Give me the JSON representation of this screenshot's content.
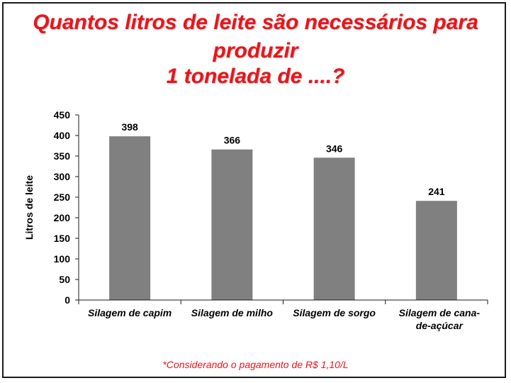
{
  "title": {
    "line1": "Quantos litros de leite são necessários para",
    "line2": "produzir",
    "line3": "1 tonelada de ....?"
  },
  "footnote": "*Considerando o pagamento de R$ 1,10/L",
  "colors": {
    "title": "#e8151b",
    "bar": "#808080",
    "axis": "#1a1a1a"
  },
  "chart_data": {
    "type": "bar",
    "categories": [
      [
        "Silagem de capim"
      ],
      [
        "Silagem de milho"
      ],
      [
        "Silagem de sorgo"
      ],
      [
        "Silagem de cana-",
        "de-açúcar"
      ]
    ],
    "values": [
      398,
      366,
      346,
      241
    ],
    "data_labels": [
      "398",
      "366",
      "346",
      "241"
    ],
    "ylabel": "Litros de leite",
    "xlabel": "",
    "ylim": [
      0,
      450
    ],
    "yticks": [
      0,
      50,
      100,
      150,
      200,
      250,
      300,
      350,
      400,
      450
    ],
    "grid": false,
    "legend": "none"
  }
}
